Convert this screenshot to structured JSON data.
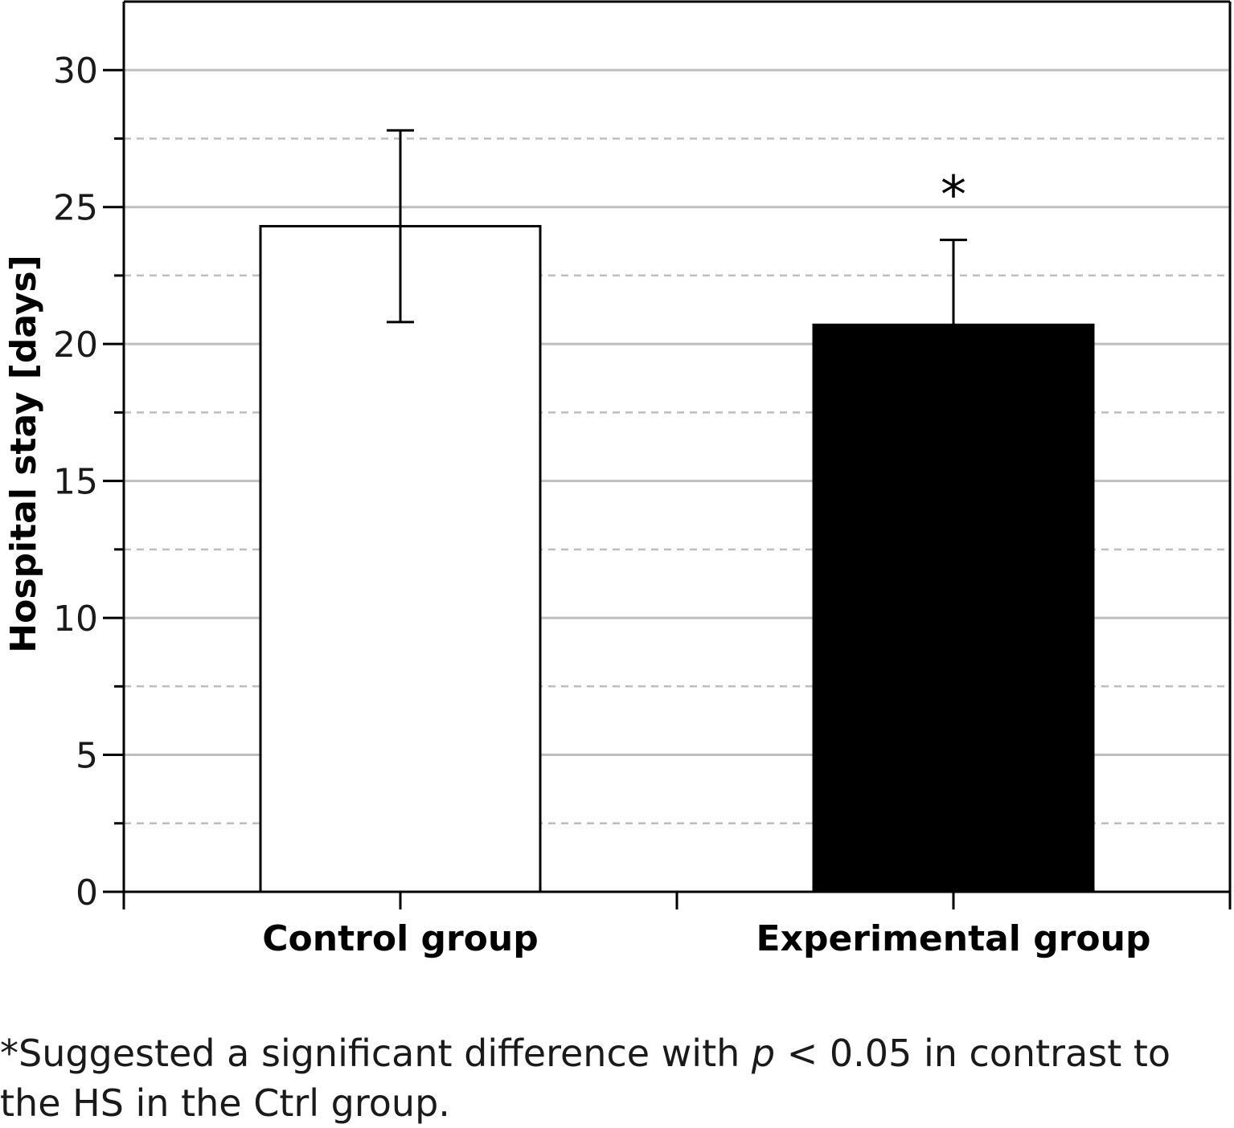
{
  "chart_data": {
    "type": "bar",
    "categories": [
      "Control group",
      "Experimental group"
    ],
    "values": [
      24.3,
      20.7
    ],
    "error_upper": [
      27.8,
      23.8
    ],
    "error_lower": [
      20.8,
      20.7
    ],
    "bar_colors": [
      "#ffffff",
      "#000000"
    ],
    "ylabel": "Hospital stay [days]",
    "xlabel": "",
    "ylim": [
      0,
      32.5
    ],
    "yticks": [
      0,
      5,
      10,
      15,
      20,
      25,
      30
    ],
    "minor_gridlines": [
      2.5,
      7.5,
      12.5,
      17.5,
      22.5,
      27.5
    ],
    "grid": true,
    "annotations": [
      {
        "category": "Experimental group",
        "text": "*"
      }
    ]
  },
  "footnote": {
    "before": "*Suggested a significant difference with ",
    "italic": "p",
    "after": " < 0.05 in contrast to the HS in the Ctrl group."
  }
}
